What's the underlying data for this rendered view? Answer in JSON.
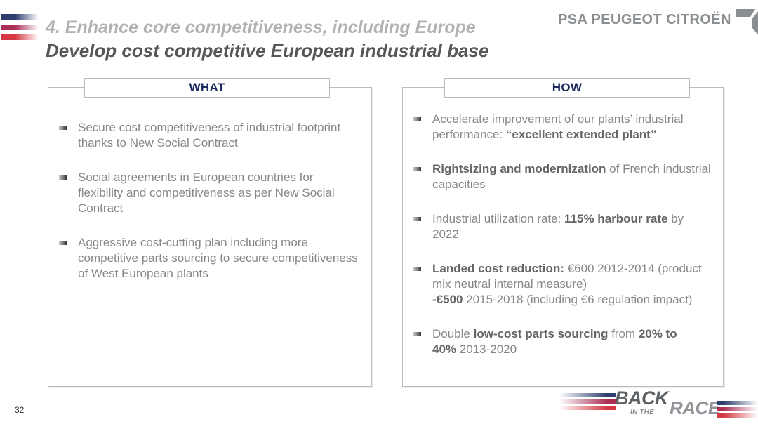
{
  "slide": {
    "header": {
      "kicker": "4. Enhance core competitiveness, including Europe",
      "title": "Develop cost competitive European industrial base"
    },
    "page_number": "32"
  },
  "brand": {
    "company_logo_text": "PSA PEUGEOT CITROËN",
    "program_logo": {
      "word_back": "BACK",
      "word_in_the": "IN THE",
      "word_race": "RACE"
    }
  },
  "colors": {
    "navy": "#1c2a5e",
    "stripe_blue": "#2e3f6e",
    "stripe_crimson": "#ab2f55",
    "stripe_red": "#d53944",
    "title_light": "#b2b2b2",
    "title_dark": "#575757",
    "body_text": "#878787",
    "body_bold": "#656565",
    "border": "#bcbcbc",
    "psa_gray": "#8a8e91"
  },
  "panels": [
    {
      "title": "WHAT",
      "items": [
        {
          "segments": [
            {
              "text": "Secure cost competitiveness of industrial footprint thanks to New Social Contract",
              "bold": false
            }
          ]
        },
        {
          "segments": [
            {
              "text": "Social agreements in European countries for flexibility and competitiveness as per New Social Contract",
              "bold": false
            }
          ]
        },
        {
          "segments": [
            {
              "text": "Aggressive cost-cutting plan including more competitive parts sourcing to secure competitiveness of West European plants",
              "bold": false
            }
          ]
        }
      ]
    },
    {
      "title": "HOW",
      "items": [
        {
          "segments": [
            {
              "text": "Accelerate improvement of our plants’ industrial performance: ",
              "bold": false
            },
            {
              "text": "“excellent extended plant”",
              "bold": true
            }
          ]
        },
        {
          "segments": [
            {
              "text": "Rightsizing and modernization",
              "bold": true
            },
            {
              "text": " of French industrial capacities",
              "bold": false
            }
          ]
        },
        {
          "segments": [
            {
              "text": "Industrial utilization rate: ",
              "bold": false
            },
            {
              "text": "115% harbour rate",
              "bold": true
            },
            {
              "text": " by\n2022",
              "bold": false
            }
          ]
        },
        {
          "segments": [
            {
              "text": "Landed cost reduction:",
              "bold": true
            },
            {
              "text": " €600 2012-2014 (product mix neutral internal measure)\n",
              "bold": false
            },
            {
              "text": "-€500",
              "bold": true
            },
            {
              "text": " 2015-2018 (including €6 regulation impact)",
              "bold": false
            }
          ]
        },
        {
          "segments": [
            {
              "text": "Double ",
              "bold": false
            },
            {
              "text": "low-cost parts sourcing",
              "bold": true
            },
            {
              "text": " from ",
              "bold": false
            },
            {
              "text": "20% to\n40%",
              "bold": true
            },
            {
              "text": " 2013-2020",
              "bold": false
            }
          ]
        }
      ]
    }
  ]
}
